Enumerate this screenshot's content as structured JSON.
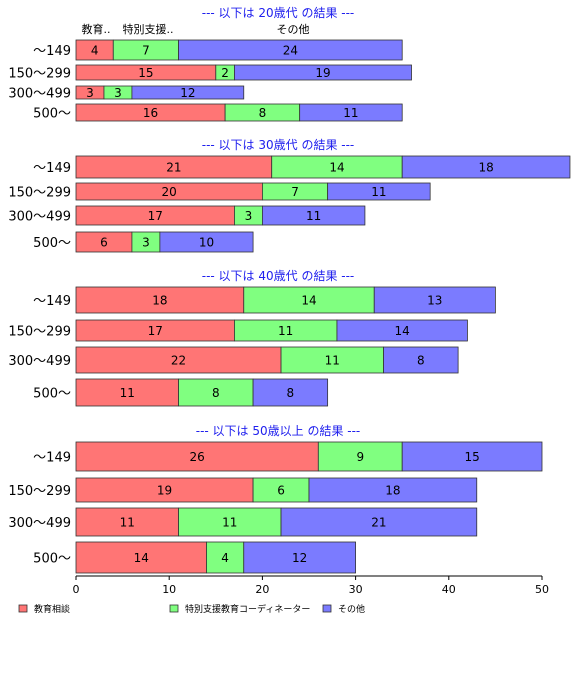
{
  "chart_data": {
    "type": "bar",
    "orientation": "horizontal",
    "stacked": true,
    "xlim": [
      0,
      50
    ],
    "x_ticks": [
      "0",
      "10",
      "20",
      "30",
      "40",
      "50"
    ],
    "categories": [
      "〜149",
      "150〜299",
      "300〜499",
      "500〜"
    ],
    "series": [
      {
        "name": "教育相談",
        "color": "#ff7575"
      },
      {
        "name": "特別支援教育コーディネーター",
        "color": "#80ff80"
      },
      {
        "name": "その他",
        "color": "#7b7bff"
      }
    ],
    "column_headers": [
      "教育..",
      "特別支援..",
      "その他"
    ],
    "groups": [
      {
        "title": "--- 以下は 20歳代 の結果 ---",
        "rows": [
          [
            4,
            7,
            24
          ],
          [
            15,
            2,
            19
          ],
          [
            3,
            3,
            12
          ],
          [
            16,
            8,
            11
          ]
        ]
      },
      {
        "title": "--- 以下は 30歳代 の結果 ---",
        "rows": [
          [
            21,
            14,
            18
          ],
          [
            20,
            7,
            11
          ],
          [
            17,
            3,
            11
          ],
          [
            6,
            3,
            10
          ]
        ]
      },
      {
        "title": "--- 以下は 40歳代 の結果 ---",
        "rows": [
          [
            18,
            14,
            13
          ],
          [
            17,
            11,
            14
          ],
          [
            22,
            11,
            8
          ],
          [
            11,
            8,
            8
          ]
        ]
      },
      {
        "title": "--- 以下は 50歳以上 の結果 ---",
        "rows": [
          [
            26,
            9,
            15
          ],
          [
            19,
            6,
            18
          ],
          [
            11,
            11,
            21
          ],
          [
            14,
            4,
            12
          ]
        ]
      }
    ],
    "legend": {
      "position": "bottom-left",
      "items": [
        "教育相談",
        "特別支援教育コーディネーター",
        "その他"
      ]
    },
    "grid": false
  }
}
